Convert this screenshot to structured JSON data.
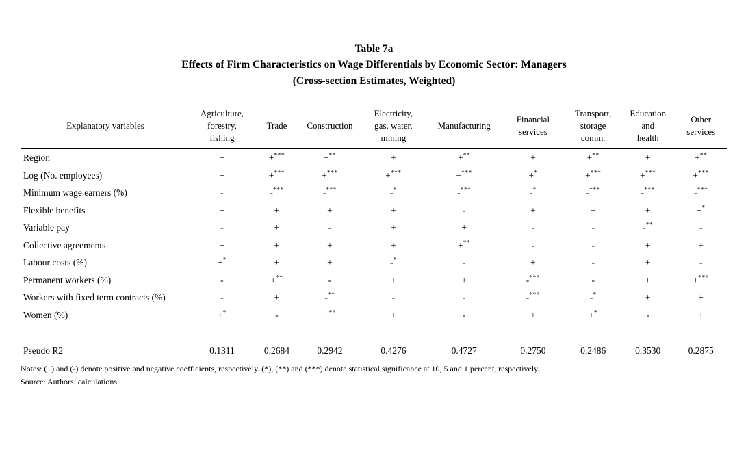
{
  "title": {
    "line1": "Table 7a",
    "line2": "Effects of Firm Characteristics on Wage Differentials by Economic Sector: Managers",
    "line3": "(Cross-section Estimates, Weighted)"
  },
  "table": {
    "header": [
      "Explanatory variables",
      "Agriculture,\nforestry,\nfishing",
      "Trade",
      "Construction",
      "Electricity,\ngas, water,\nmining",
      "Manufacturing",
      "Financial\nservices",
      "Transport,\nstorage\ncomm.",
      "Education\nand\nhealth",
      "Other\nservices"
    ],
    "rows": [
      {
        "label": "Region",
        "cells": [
          "+",
          "+***",
          "+**",
          "+",
          "+**",
          "+",
          "+**",
          "+",
          "+**"
        ]
      },
      {
        "label": "Log (No. employees)",
        "cells": [
          "+",
          "+***",
          "+***",
          "+***",
          "+***",
          "+*",
          "+***",
          "+***",
          "+***"
        ]
      },
      {
        "label": "Minimum wage earners (%)",
        "cells": [
          "-",
          "-***",
          "-***",
          "-*",
          "-***",
          "-*",
          "-***",
          "-***",
          "-***"
        ]
      },
      {
        "label": "Flexible benefits",
        "cells": [
          "+",
          "+",
          "+",
          "+",
          "-",
          "+",
          "+",
          "+",
          "+*"
        ]
      },
      {
        "label": "Variable pay",
        "cells": [
          "-",
          "+",
          "-",
          "+",
          "+",
          "-",
          "-",
          "-**",
          "-"
        ]
      },
      {
        "label": "Collective agreements",
        "cells": [
          "+",
          "+",
          "+",
          "+",
          "+**",
          "-",
          "-",
          "+",
          "+"
        ]
      },
      {
        "label": "Labour costs (%)",
        "cells": [
          "+*",
          "+",
          "+",
          "-*",
          "-",
          "+",
          "-",
          "+",
          "-"
        ]
      },
      {
        "label": "Permanent workers (%)",
        "cells": [
          "-",
          "+**",
          "-",
          "+",
          "+",
          "-***",
          "-",
          "+",
          "+***"
        ]
      },
      {
        "label": "Workers with fixed term contracts (%)",
        "cells": [
          "-",
          "+",
          "-**",
          "-",
          "-",
          "-***",
          "-*",
          "+",
          "+"
        ]
      },
      {
        "label": "Women (%)",
        "cells": [
          "+*",
          "-",
          "+**",
          "+",
          "-",
          "+",
          "+*",
          "-",
          "+"
        ]
      }
    ],
    "stats_row": {
      "label": "Pseudo R2",
      "cells": [
        "0.1311",
        "0.2684",
        "0.2942",
        "0.4276",
        "0.4727",
        "0.2750",
        "0.2486",
        "0.3530",
        "0.2875"
      ]
    }
  },
  "notes": {
    "notes_line": "Notes: (+) and (-) denote positive and negative coefficients, respectively. (*), (**) and (***) denote statistical significance at 10, 5 and 1 percent, respectively.",
    "source_line": "Source: Authors’ calculations."
  }
}
